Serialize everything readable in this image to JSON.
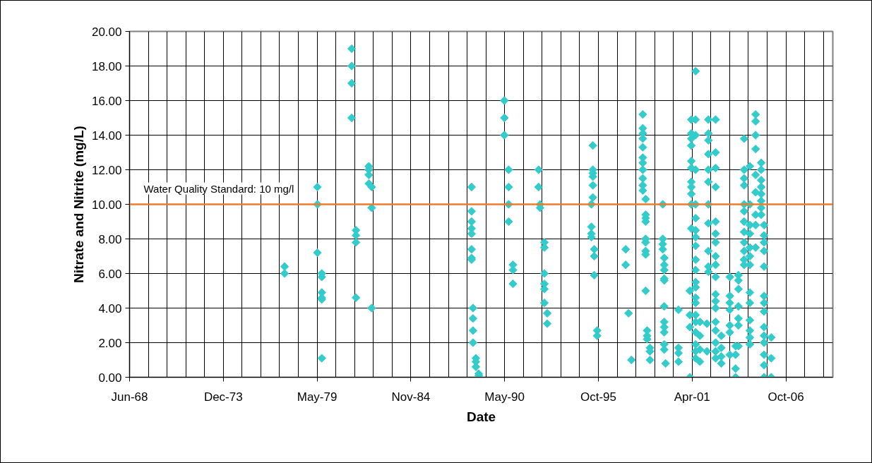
{
  "chart_data": {
    "type": "scatter",
    "xlabel": "Date",
    "ylabel": "Nitrate and Nitrite (mg/L)",
    "marker": "diamond",
    "grid": true,
    "xlim": [
      "1968-06-11",
      "2009-07-06"
    ],
    "ylim": [
      0,
      20
    ],
    "xticks": [
      {
        "value": "1968-06-11",
        "label": "Jun-68"
      },
      {
        "value": "1969-07-16",
        "label": null
      },
      {
        "value": "1970-08-20",
        "label": null
      },
      {
        "value": "1971-09-24",
        "label": null
      },
      {
        "value": "1972-10-28",
        "label": null
      },
      {
        "value": "1973-12-02",
        "label": "Dec-73"
      },
      {
        "value": "1975-01-06",
        "label": null
      },
      {
        "value": "1976-02-10",
        "label": null
      },
      {
        "value": "1977-03-16",
        "label": null
      },
      {
        "value": "1978-04-20",
        "label": null
      },
      {
        "value": "1979-05-25",
        "label": "May-79"
      },
      {
        "value": "1980-06-28",
        "label": null
      },
      {
        "value": "1981-08-02",
        "label": null
      },
      {
        "value": "1982-09-06",
        "label": null
      },
      {
        "value": "1983-10-11",
        "label": null
      },
      {
        "value": "1984-11-14",
        "label": "Nov-84"
      },
      {
        "value": "1985-12-19",
        "label": null
      },
      {
        "value": "1987-01-23",
        "label": null
      },
      {
        "value": "1988-02-27",
        "label": null
      },
      {
        "value": "1989-04-02",
        "label": null
      },
      {
        "value": "1990-05-07",
        "label": "May-90"
      },
      {
        "value": "1991-06-11",
        "label": null
      },
      {
        "value": "1992-07-15",
        "label": null
      },
      {
        "value": "1993-08-19",
        "label": null
      },
      {
        "value": "1994-09-23",
        "label": null
      },
      {
        "value": "1995-10-28",
        "label": "Oct-95"
      },
      {
        "value": "1996-12-01",
        "label": null
      },
      {
        "value": "1998-01-05",
        "label": null
      },
      {
        "value": "1999-02-09",
        "label": null
      },
      {
        "value": "2000-03-15",
        "label": null
      },
      {
        "value": "2001-04-19",
        "label": "Apr-01"
      },
      {
        "value": "2002-05-24",
        "label": null
      },
      {
        "value": "2003-06-28",
        "label": null
      },
      {
        "value": "2004-08-01",
        "label": null
      },
      {
        "value": "2005-09-05",
        "label": null
      },
      {
        "value": "2006-10-10",
        "label": "Oct-06"
      },
      {
        "value": "2007-11-14",
        "label": null
      },
      {
        "value": "2008-12-18",
        "label": null
      }
    ],
    "yticks": [
      {
        "value": 0,
        "label": "0.00"
      },
      {
        "value": 2,
        "label": "2.00"
      },
      {
        "value": 4,
        "label": "4.00"
      },
      {
        "value": 6,
        "label": "6.00"
      },
      {
        "value": 8,
        "label": "8.00"
      },
      {
        "value": 10,
        "label": "10.00"
      },
      {
        "value": 12,
        "label": "12.00"
      },
      {
        "value": 14,
        "label": "14.00"
      },
      {
        "value": 16,
        "label": "16.00"
      },
      {
        "value": 18,
        "label": "18.00"
      },
      {
        "value": 20,
        "label": "20.00"
      }
    ],
    "ref_lines": [
      {
        "axis": "y",
        "value": 10,
        "label": "Water Quality Standard: 10 mg/l",
        "color": "#f07a2a"
      }
    ],
    "series": [
      {
        "color": "#33cccc",
        "x": [
          "1977-07",
          "1977-07",
          "1979-06",
          "1979-06",
          "1979-06",
          "1979-09",
          "1979-09",
          "1979-09",
          "1979-09",
          "1979-09",
          "1979-09",
          "1981-06",
          "1981-06",
          "1981-06",
          "1981-06",
          "1981-09",
          "1981-09",
          "1981-09",
          "1981-09",
          "1982-06",
          "1982-06",
          "1982-06",
          "1982-06",
          "1982-08",
          "1982-08",
          "1982-08",
          "1988-06",
          "1988-06",
          "1988-06",
          "1988-06",
          "1988-06",
          "1988-06",
          "1988-06",
          "1988-06",
          "1988-07",
          "1988-07",
          "1988-07",
          "1988-07",
          "1988-09",
          "1988-09",
          "1988-09",
          "1988-11",
          "1988-11",
          "1990-05",
          "1990-05",
          "1990-05",
          "1990-08",
          "1990-08",
          "1990-08",
          "1990-08",
          "1990-11",
          "1990-11",
          "1990-11",
          "1992-05",
          "1992-05",
          "1992-06",
          "1992-06",
          "1992-09",
          "1992-09",
          "1992-09",
          "1992-09",
          "1992-09",
          "1992-09",
          "1992-11",
          "1992-11",
          "1995-07",
          "1995-07",
          "1995-07",
          "1995-07",
          "1995-07",
          "1995-07",
          "1995-06",
          "1995-06",
          "1995-06",
          "1995-06",
          "1995-08",
          "1995-08",
          "1995-08",
          "1995-10",
          "1995-10",
          "1997-06",
          "1997-06",
          "1997-08",
          "1997-10",
          "1998-06",
          "1998-06",
          "1998-06",
          "1998-06",
          "1998-06",
          "1998-06",
          "1998-06",
          "1998-06",
          "1998-06",
          "1998-06",
          "1998-06",
          "1998-08",
          "1998-08",
          "1998-08",
          "1998-08",
          "1998-08",
          "1998-08",
          "1998-08",
          "1998-08",
          "1998-08",
          "1998-09",
          "1998-09",
          "1998-09",
          "1998-11",
          "1998-11",
          "1998-11",
          "1999-08",
          "1999-08",
          "1999-08",
          "1999-08",
          "1999-09",
          "1999-09",
          "1999-09",
          "1999-09",
          "1999-09",
          "1999-09",
          "1999-09",
          "1999-09",
          "1999-09",
          "1999-09",
          "1999-09",
          "1999-10",
          "2000-07",
          "2000-07",
          "2000-07",
          "2000-07",
          "2001-03",
          "2001-03",
          "2001-03",
          "2001-03",
          "2001-04",
          "2001-04",
          "2001-04",
          "2001-04",
          "2001-04",
          "2001-04",
          "2001-04",
          "2001-04",
          "2001-04",
          "2001-04",
          "2001-04",
          "2001-07",
          "2001-07",
          "2001-07",
          "2001-07",
          "2001-07",
          "2001-07",
          "2001-07",
          "2001-07",
          "2001-07",
          "2001-07",
          "2001-07",
          "2001-07",
          "2001-07",
          "2001-07",
          "2001-07",
          "2001-07",
          "2001-07",
          "2001-07",
          "2001-07",
          "2001-07",
          "2001-07",
          "2001-10",
          "2001-10",
          "2001-10",
          "2001-10",
          "2002-04",
          "2002-04",
          "2002-04",
          "2002-04",
          "2002-04",
          "2002-04",
          "2002-04",
          "2002-04",
          "2002-04",
          "2002-04",
          "2002-04",
          "2002-03",
          "2002-03",
          "2002-09",
          "2002-09",
          "2002-09",
          "2002-09",
          "2002-09",
          "2002-09",
          "2002-09",
          "2002-09",
          "2002-09",
          "2002-09",
          "2002-09",
          "2002-09",
          "2002-09",
          "2002-09",
          "2002-09",
          "2002-09",
          "2002-09",
          "2002-09",
          "2003-01",
          "2003-01",
          "2003-01",
          "2003-01",
          "2003-07",
          "2003-07",
          "2003-07",
          "2003-07",
          "2003-07",
          "2003-07",
          "2003-07",
          "2003-11",
          "2003-11",
          "2003-11",
          "2003-11",
          "2004-01",
          "2004-01",
          "2004-01",
          "2004-01",
          "2004-01",
          "2004-01",
          "2004-01",
          "2004-05",
          "2004-05",
          "2004-05",
          "2004-05",
          "2004-05",
          "2004-05",
          "2004-05",
          "2004-05",
          "2004-05",
          "2004-05",
          "2004-05",
          "2004-05",
          "2004-09",
          "2004-09",
          "2004-09",
          "2004-09",
          "2004-09",
          "2004-09",
          "2004-09",
          "2004-09",
          "2004-09",
          "2004-09",
          "2004-09",
          "2004-09",
          "2004-09",
          "2005-01",
          "2005-01",
          "2005-01",
          "2005-01",
          "2005-01",
          "2005-01",
          "2005-01",
          "2005-01",
          "2005-01",
          "2005-05",
          "2005-05",
          "2005-05",
          "2005-05",
          "2005-05",
          "2005-05",
          "2005-05",
          "2005-05",
          "2005-07",
          "2005-07",
          "2005-07",
          "2005-07",
          "2005-07",
          "2005-07",
          "2005-07",
          "2005-07",
          "2005-07",
          "2005-07",
          "2005-07",
          "2005-07",
          "2005-07",
          "2005-07",
          "2005-12",
          "2005-12",
          "2005-12"
        ],
        "values": [
          6.4,
          6.0,
          11.0,
          10.0,
          7.2,
          6.0,
          5.8,
          4.9,
          4.6,
          4.5,
          1.1,
          19.0,
          18.0,
          17.0,
          15.0,
          8.5,
          8.2,
          7.8,
          4.6,
          12.2,
          12.0,
          11.7,
          11.2,
          11.0,
          9.8,
          4.0,
          11.0,
          9.6,
          9.0,
          8.6,
          8.3,
          7.4,
          6.9,
          6.8,
          4.0,
          3.4,
          2.7,
          2.0,
          1.1,
          0.9,
          0.6,
          0.2,
          0.1,
          16.0,
          15.0,
          14.0,
          12.0,
          11.0,
          10.0,
          9.0,
          6.5,
          6.2,
          5.4,
          12.0,
          11.0,
          10.0,
          9.8,
          7.8,
          7.5,
          6.0,
          5.4,
          5.1,
          4.3,
          3.7,
          3.1,
          13.4,
          12.0,
          11.8,
          11.6,
          11.1,
          10.4,
          10.0,
          8.7,
          8.3,
          8.1,
          7.4,
          7.0,
          5.9,
          2.7,
          2.4,
          7.4,
          6.5,
          3.7,
          1.0,
          15.2,
          14.4,
          14.1,
          13.8,
          13.3,
          12.7,
          12.4,
          12.0,
          11.5,
          11.1,
          10.8,
          10.3,
          9.4,
          9.2,
          9.0,
          8.0,
          7.8,
          7.3,
          7.1,
          5.0,
          2.7,
          2.4,
          2.2,
          1.7,
          1.5,
          1.0,
          10.0,
          8.0,
          7.7,
          7.4,
          6.9,
          6.5,
          6.2,
          5.7,
          5.6,
          4.1,
          3.2,
          2.9,
          2.6,
          1.9,
          1.6,
          0.8,
          3.9,
          1.7,
          1.4,
          0.9,
          5.0,
          3.6,
          2.9,
          0.0,
          14.9,
          14.1,
          13.8,
          13.4,
          12.5,
          12.1,
          11.3,
          11.0,
          10.6,
          10.0,
          8.6,
          17.7,
          14.9,
          14.0,
          12.0,
          10.0,
          9.2,
          8.5,
          8.1,
          7.6,
          6.8,
          6.2,
          5.5,
          5.2,
          4.6,
          4.3,
          3.6,
          3.2,
          2.6,
          1.9,
          1.5,
          1.1,
          3.2,
          2.4,
          1.6,
          0.9,
          14.9,
          14.1,
          13.7,
          12.9,
          12.0,
          11.3,
          10.0,
          8.9,
          7.3,
          6.4,
          6.1,
          3.1,
          1.5,
          14.9,
          13.0,
          12.1,
          11.0,
          9.0,
          8.3,
          7.8,
          7.0,
          6.5,
          5.8,
          4.8,
          4.4,
          4.0,
          3.2,
          2.7,
          2.0,
          1.5,
          1.1,
          2.4,
          1.7,
          1.2,
          0.8,
          5.8,
          4.7,
          4.3,
          3.9,
          3.0,
          2.6,
          1.3,
          0.0,
          0.5,
          1.3,
          1.8,
          5.9,
          5.6,
          5.1,
          4.1,
          3.4,
          3.0,
          1.8,
          13.8,
          12.0,
          11.5,
          11.1,
          10.0,
          9.6,
          9.0,
          8.4,
          7.8,
          7.3,
          6.8,
          6.5,
          12.2,
          10.0,
          8.8,
          8.3,
          7.5,
          7.0,
          6.5,
          4.9,
          4.3,
          3.3,
          2.7,
          2.3,
          1.9,
          15.2,
          14.8,
          14.0,
          13.2,
          11.7,
          10.7,
          9.4,
          8.8,
          7.5,
          12.4,
          12.0,
          11.4,
          11.0,
          10.6,
          10.2,
          9.8,
          9.4,
          8.8,
          8.2,
          7.8,
          7.3,
          6.4,
          4.7,
          4.3,
          3.8,
          2.9,
          2.4,
          2.0,
          1.3,
          0.7,
          0.0,
          2.3,
          1.1,
          0.0
        ]
      }
    ]
  }
}
